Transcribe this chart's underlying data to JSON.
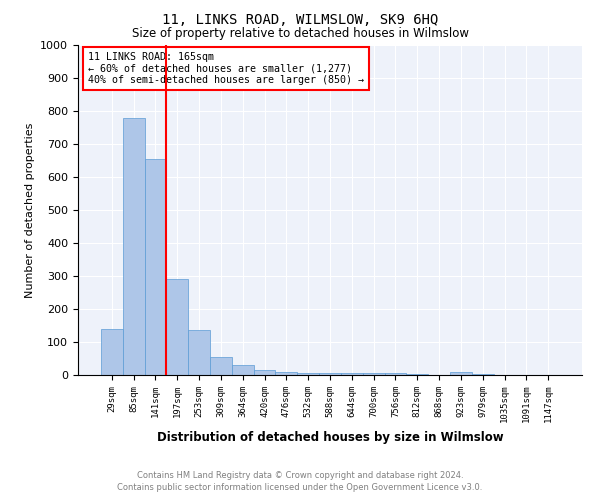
{
  "title": "11, LINKS ROAD, WILMSLOW, SK9 6HQ",
  "subtitle": "Size of property relative to detached houses in Wilmslow",
  "xlabel": "Distribution of detached houses by size in Wilmslow",
  "ylabel": "Number of detached properties",
  "annotation_line1": "11 LINKS ROAD: 165sqm",
  "annotation_line2": "← 60% of detached houses are smaller (1,277)",
  "annotation_line3": "40% of semi-detached houses are larger (850) →",
  "footer1": "Contains HM Land Registry data © Crown copyright and database right 2024.",
  "footer2": "Contains public sector information licensed under the Open Government Licence v3.0.",
  "bar_values": [
    140,
    780,
    655,
    290,
    135,
    55,
    30,
    15,
    10,
    7,
    7,
    5,
    5,
    7,
    2,
    0,
    10,
    2,
    0,
    0,
    0
  ],
  "categories": [
    "29sqm",
    "85sqm",
    "141sqm",
    "197sqm",
    "253sqm",
    "309sqm",
    "364sqm",
    "420sqm",
    "476sqm",
    "532sqm",
    "588sqm",
    "644sqm",
    "700sqm",
    "756sqm",
    "812sqm",
    "868sqm",
    "923sqm",
    "979sqm",
    "1035sqm",
    "1091sqm",
    "1147sqm"
  ],
  "bar_color": "#aec6e8",
  "bar_edgecolor": "#5b9bd5",
  "marker_color": "red",
  "ylim": [
    0,
    1000
  ],
  "yticks": [
    0,
    100,
    200,
    300,
    400,
    500,
    600,
    700,
    800,
    900,
    1000
  ],
  "annotation_box_color": "red",
  "background_color": "#eef2fa"
}
